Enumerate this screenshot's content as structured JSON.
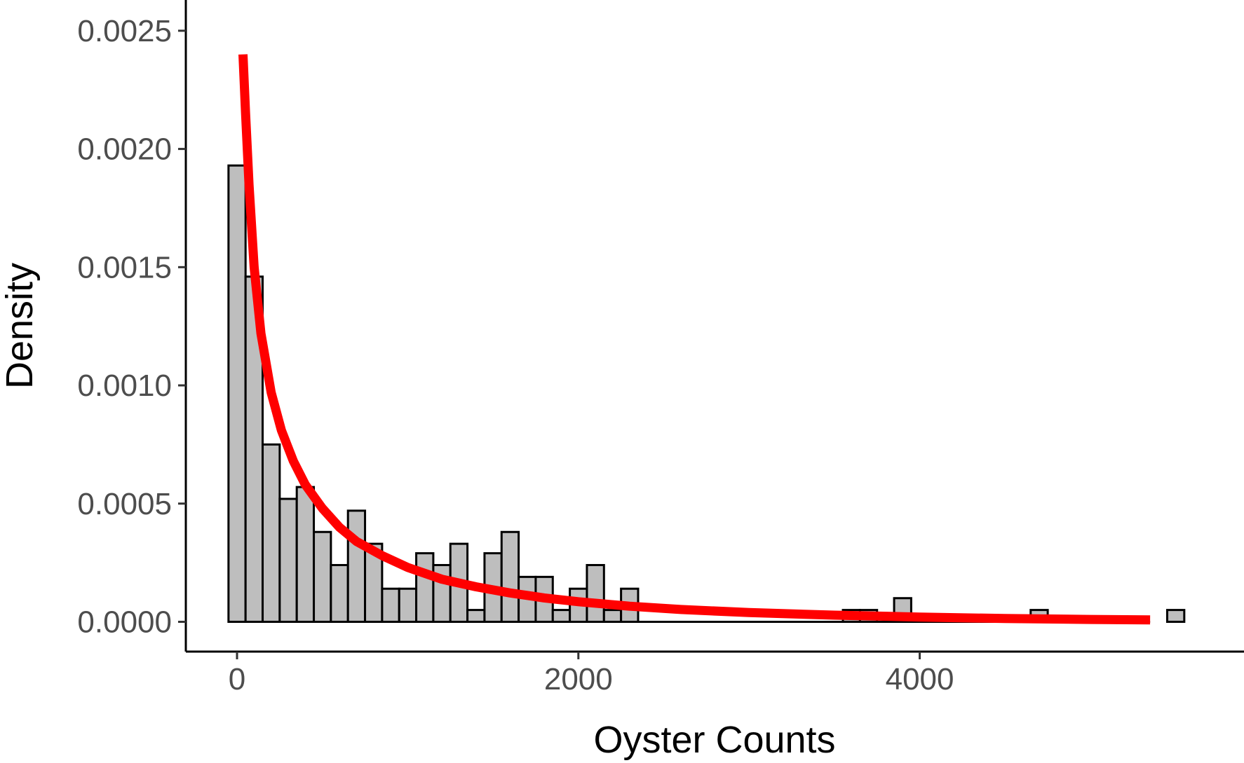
{
  "chart_data": {
    "type": "histogram",
    "xlabel": "Oyster Counts",
    "ylabel": "Density",
    "xlim": [
      -300,
      5900
    ],
    "ylim": [
      -0.000126,
      0.00263
    ],
    "x_ticks": [
      0,
      2000,
      4000
    ],
    "x_tick_labels": [
      "0",
      "2000",
      "4000"
    ],
    "y_ticks": [
      0,
      0.0005,
      0.001,
      0.0015,
      0.002,
      0.0025
    ],
    "y_tick_labels": [
      "0.0000",
      "0.0005",
      "0.0010",
      "0.0015",
      "0.0020",
      "0.0025"
    ],
    "grid": false,
    "bin_width": 100,
    "first_bin_start": -50,
    "bar_fill": "#bebebe",
    "bar_stroke": "#000000",
    "bar_densities": [
      0.00193,
      0.00146,
      0.00075,
      0.00052,
      0.00057,
      0.00038,
      0.00024,
      0.00047,
      0.00033,
      0.00014,
      0.00014,
      0.00029,
      0.00024,
      0.00033,
      5e-05,
      0.00029,
      0.00038,
      0.00019,
      0.00019,
      5e-05,
      0.00014,
      0.00024,
      5e-05,
      0.00014,
      0,
      0,
      0,
      0,
      0,
      0,
      0,
      0,
      0,
      0,
      0,
      0,
      5e-05,
      5e-05,
      0,
      0.0001,
      0,
      0,
      0,
      0,
      0,
      0,
      0,
      5e-05,
      0,
      0,
      0,
      0,
      0,
      0,
      0,
      5e-05,
      0,
      0,
      0,
      0,
      0,
      0,
      0,
      0,
      0,
      0,
      0,
      0,
      0,
      0,
      0,
      0,
      0,
      0,
      0,
      0,
      0,
      0,
      0,
      0,
      0,
      0,
      0,
      0,
      0,
      0,
      0,
      0
    ],
    "baseline_extent": [
      -50,
      5350
    ],
    "fitted_curve": {
      "color": "#ff0000",
      "points": [
        [
          35,
          0.0024
        ],
        [
          50,
          0.00215
        ],
        [
          70,
          0.00185
        ],
        [
          100,
          0.0015
        ],
        [
          140,
          0.00122
        ],
        [
          200,
          0.00097
        ],
        [
          260,
          0.00081
        ],
        [
          330,
          0.00068
        ],
        [
          400,
          0.00058
        ],
        [
          500,
          0.00048
        ],
        [
          600,
          0.0004
        ],
        [
          700,
          0.00034
        ],
        [
          850,
          0.00028
        ],
        [
          1000,
          0.00023
        ],
        [
          1200,
          0.00018
        ],
        [
          1400,
          0.000148
        ],
        [
          1600,
          0.000122
        ],
        [
          1800,
          0.000101
        ],
        [
          2000,
          8.5e-05
        ],
        [
          2300,
          6.6e-05
        ],
        [
          2600,
          5.2e-05
        ],
        [
          3000,
          3.9e-05
        ],
        [
          3500,
          2.8e-05
        ],
        [
          4000,
          2e-05
        ],
        [
          4500,
          1.4e-05
        ],
        [
          5000,
          1e-05
        ],
        [
          5350,
          8e-06
        ]
      ]
    }
  }
}
